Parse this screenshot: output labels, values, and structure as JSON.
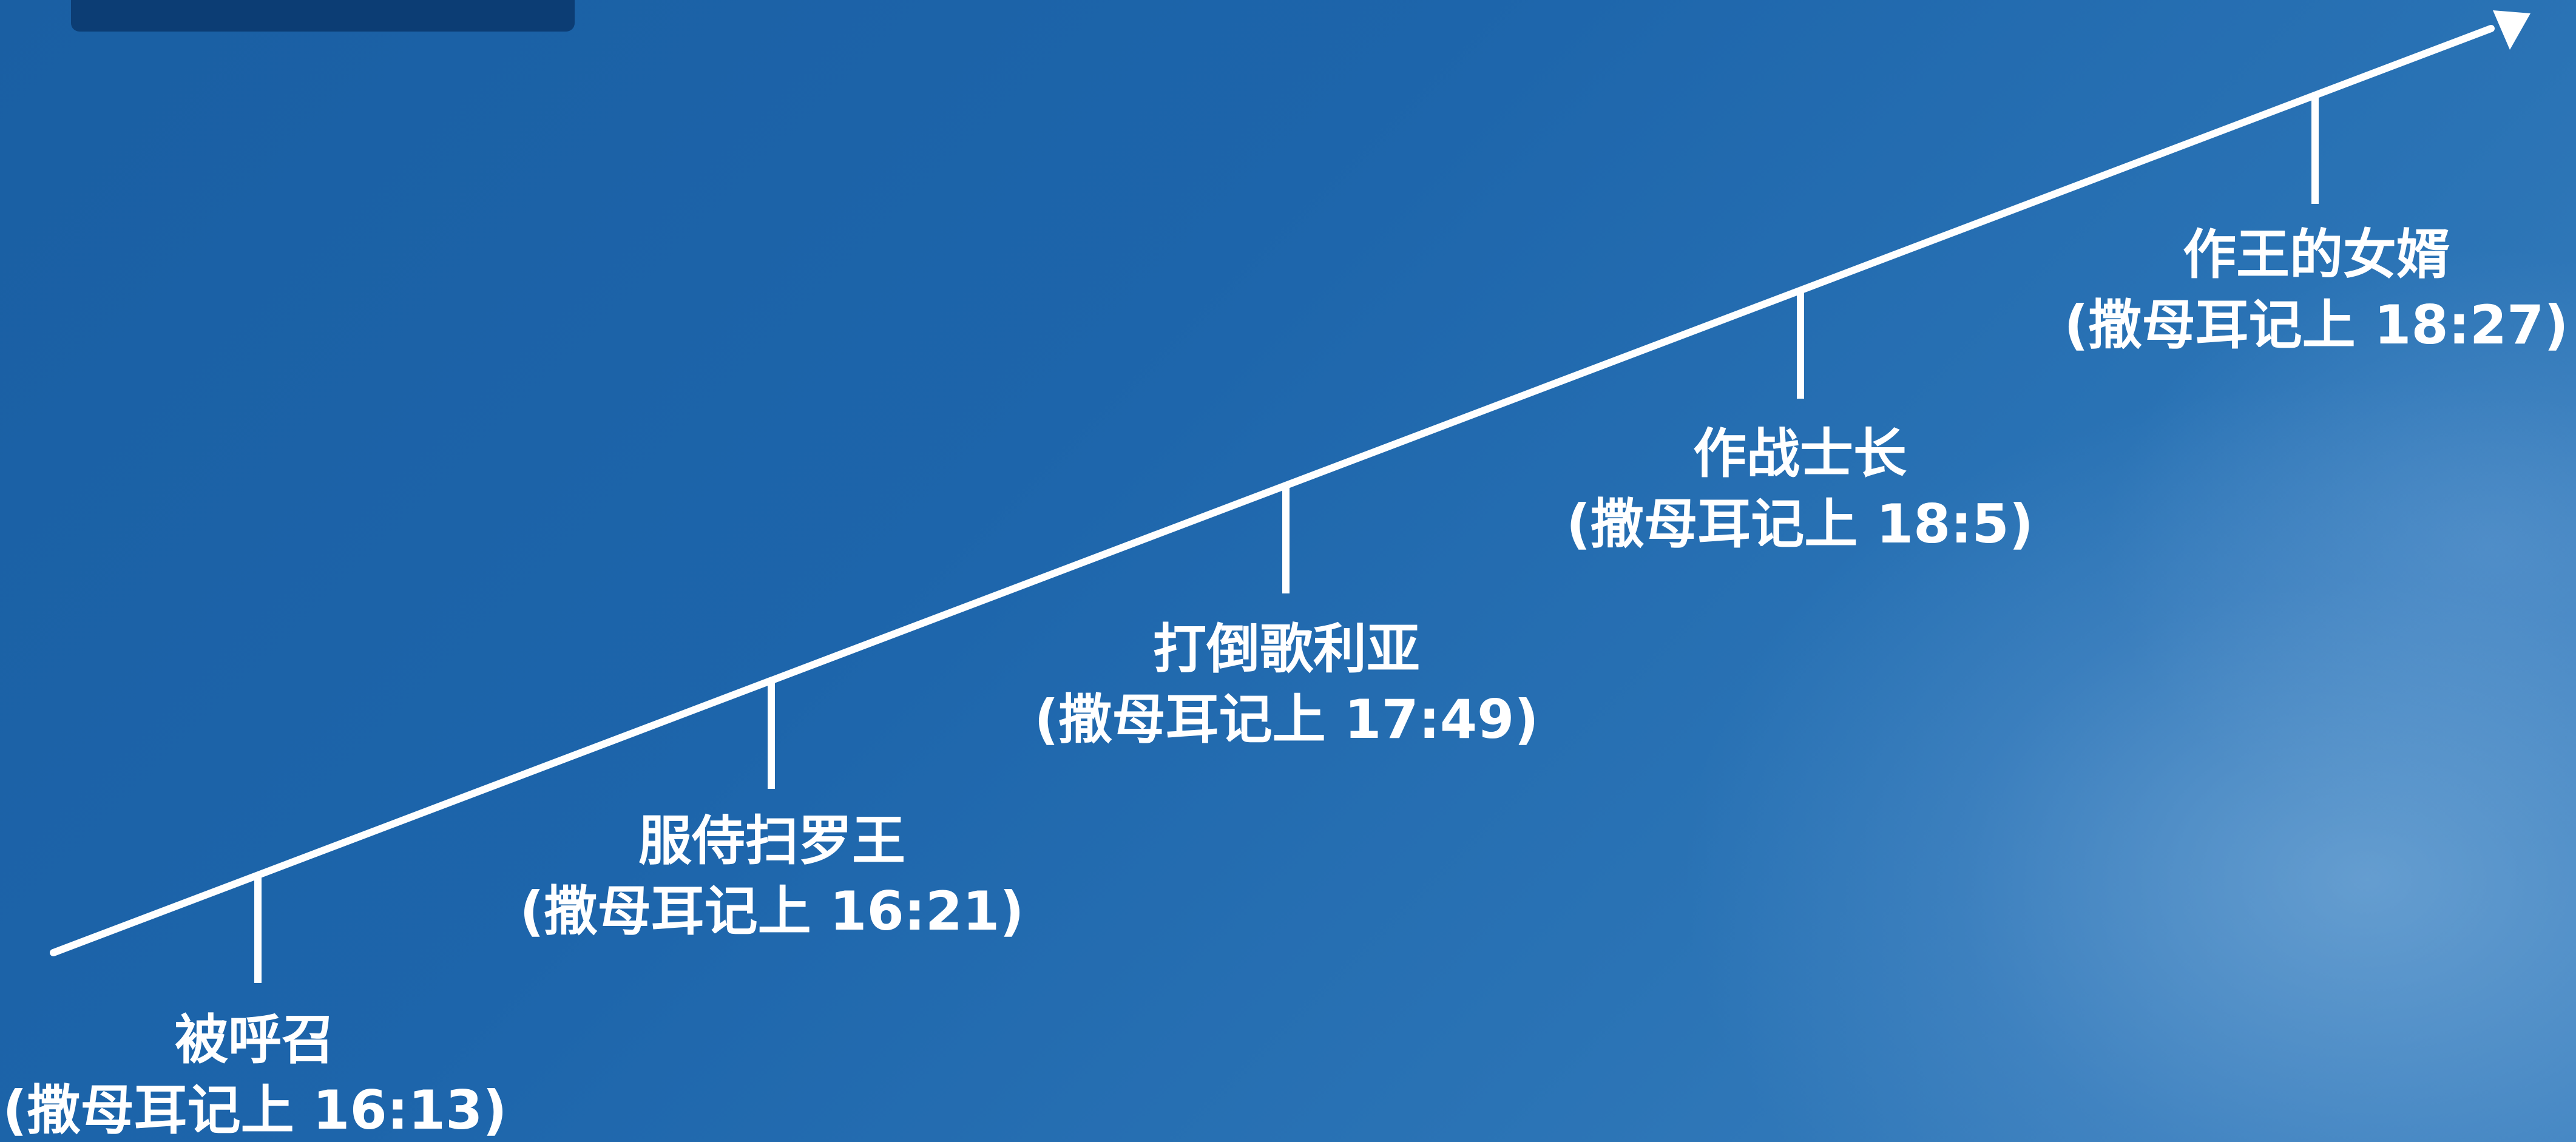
{
  "colors": {
    "background": "#1d65ab",
    "line": "#ffffff",
    "text": "#ffffff",
    "corner_tab": "#0c3d74"
  },
  "timeline": {
    "events": [
      {
        "title": "被呼召",
        "reference": "(撒母耳记上 16:13)"
      },
      {
        "title": "服侍扫罗王",
        "reference": "(撒母耳记上 16:21)"
      },
      {
        "title": "打倒歌利亚",
        "reference": "(撒母耳记上 17:49)"
      },
      {
        "title": "作战士长",
        "reference": "(撒母耳记上 18:5)"
      },
      {
        "title": "作王的女婿",
        "reference": "(撒母耳记上 18:27)"
      }
    ]
  }
}
